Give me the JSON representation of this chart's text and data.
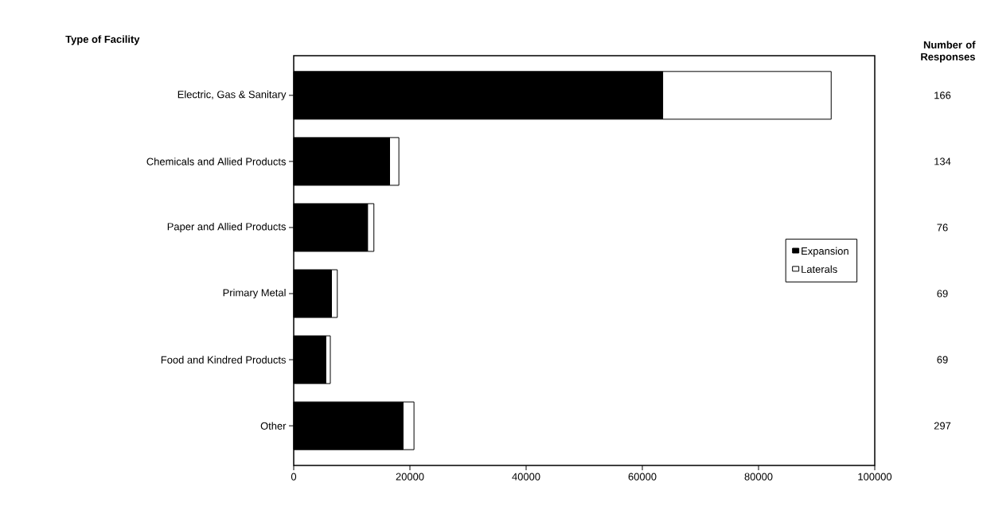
{
  "chart_data": {
    "type": "bar",
    "orientation": "horizontal",
    "stacked": true,
    "ylabel": "Type of Facility",
    "categories": [
      "Electric, Gas & Sanitary",
      "Chemicals and Allied Products",
      "Paper and Allied Products",
      "Primary Metal",
      "Food and Kindred Products",
      "Other"
    ],
    "series": [
      {
        "name": "Expansion",
        "color": "#000000",
        "values": [
          63500,
          16500,
          12700,
          6500,
          5500,
          18800
        ]
      },
      {
        "name": "Laterals",
        "color": "#ffffff",
        "values": [
          29000,
          1600,
          1100,
          1000,
          800,
          1900
        ]
      }
    ],
    "xlim": [
      0,
      100000
    ],
    "xticks": [
      0,
      20000,
      40000,
      60000,
      80000,
      100000
    ],
    "legend": "right",
    "annotations": [
      "**Number of Responses**",
      "166",
      "134",
      "76",
      "69",
      "69",
      "297"
    ]
  }
}
